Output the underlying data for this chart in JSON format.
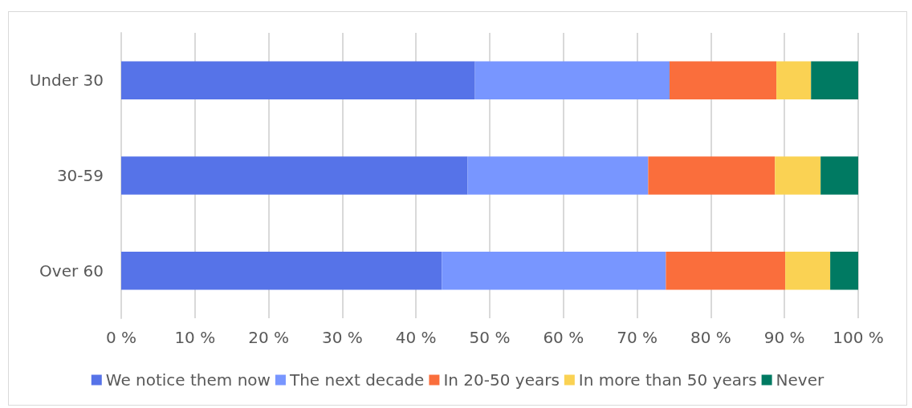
{
  "chart_data": {
    "type": "bar",
    "orientation": "horizontal",
    "stacked": true,
    "categories": [
      "Under 30",
      "30-59",
      "Over 60"
    ],
    "series": [
      {
        "name": "We notice them now",
        "color": "#5673e8",
        "values": [
          48.0,
          47.0,
          43.5
        ]
      },
      {
        "name": "The next decade",
        "color": "#7896ff",
        "values": [
          26.4,
          24.5,
          30.4
        ]
      },
      {
        "name": "In 20-50 years",
        "color": "#fa6e3c",
        "values": [
          14.5,
          17.2,
          16.2
        ]
      },
      {
        "name": "In more than 50 years",
        "color": "#fad253",
        "values": [
          4.7,
          6.2,
          6.1
        ]
      },
      {
        "name": "Never",
        "color": "#007a62",
        "values": [
          6.4,
          5.1,
          3.8
        ]
      }
    ],
    "xlim": [
      0,
      100
    ],
    "xticks": [
      {
        "value": 0,
        "label": "0 %"
      },
      {
        "value": 10,
        "label": "10 %"
      },
      {
        "value": 20,
        "label": "20 %"
      },
      {
        "value": 30,
        "label": "30 %"
      },
      {
        "value": 40,
        "label": "40 %"
      },
      {
        "value": 50,
        "label": "50 %"
      },
      {
        "value": 60,
        "label": "60 %"
      },
      {
        "value": 70,
        "label": "70 %"
      },
      {
        "value": 80,
        "label": "80 %"
      },
      {
        "value": 90,
        "label": "90 %"
      },
      {
        "value": 100,
        "label": "100 %"
      }
    ],
    "grid": "x",
    "legend": "bottom"
  }
}
